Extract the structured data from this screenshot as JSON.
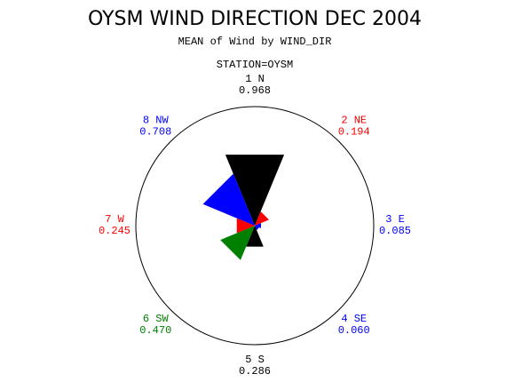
{
  "chart_data": {
    "type": "star",
    "title": "OYSM WIND DIRECTION DEC 2004",
    "subtitle": "MEAN of Wind by WIND_DIR",
    "station": "STATION=OYSM",
    "categories": [
      "1 N",
      "2 NE",
      "3 E",
      "4 SE",
      "5 S",
      "6 SW",
      "7 W",
      "8 NW"
    ],
    "values": [
      0.968,
      0.194,
      0.085,
      0.06,
      0.286,
      0.47,
      0.245,
      0.708
    ],
    "value_labels": [
      "0.968",
      "0.194",
      "0.085",
      "0.060",
      "0.286",
      "0.470",
      "0.245",
      "0.708"
    ],
    "colors": [
      "#000000",
      "#ff0000",
      "#0000ff",
      "#0000ff",
      "#000000",
      "#008000",
      "#ff0000",
      "#0000ff"
    ],
    "rlim": [
      0,
      1.5
    ]
  }
}
